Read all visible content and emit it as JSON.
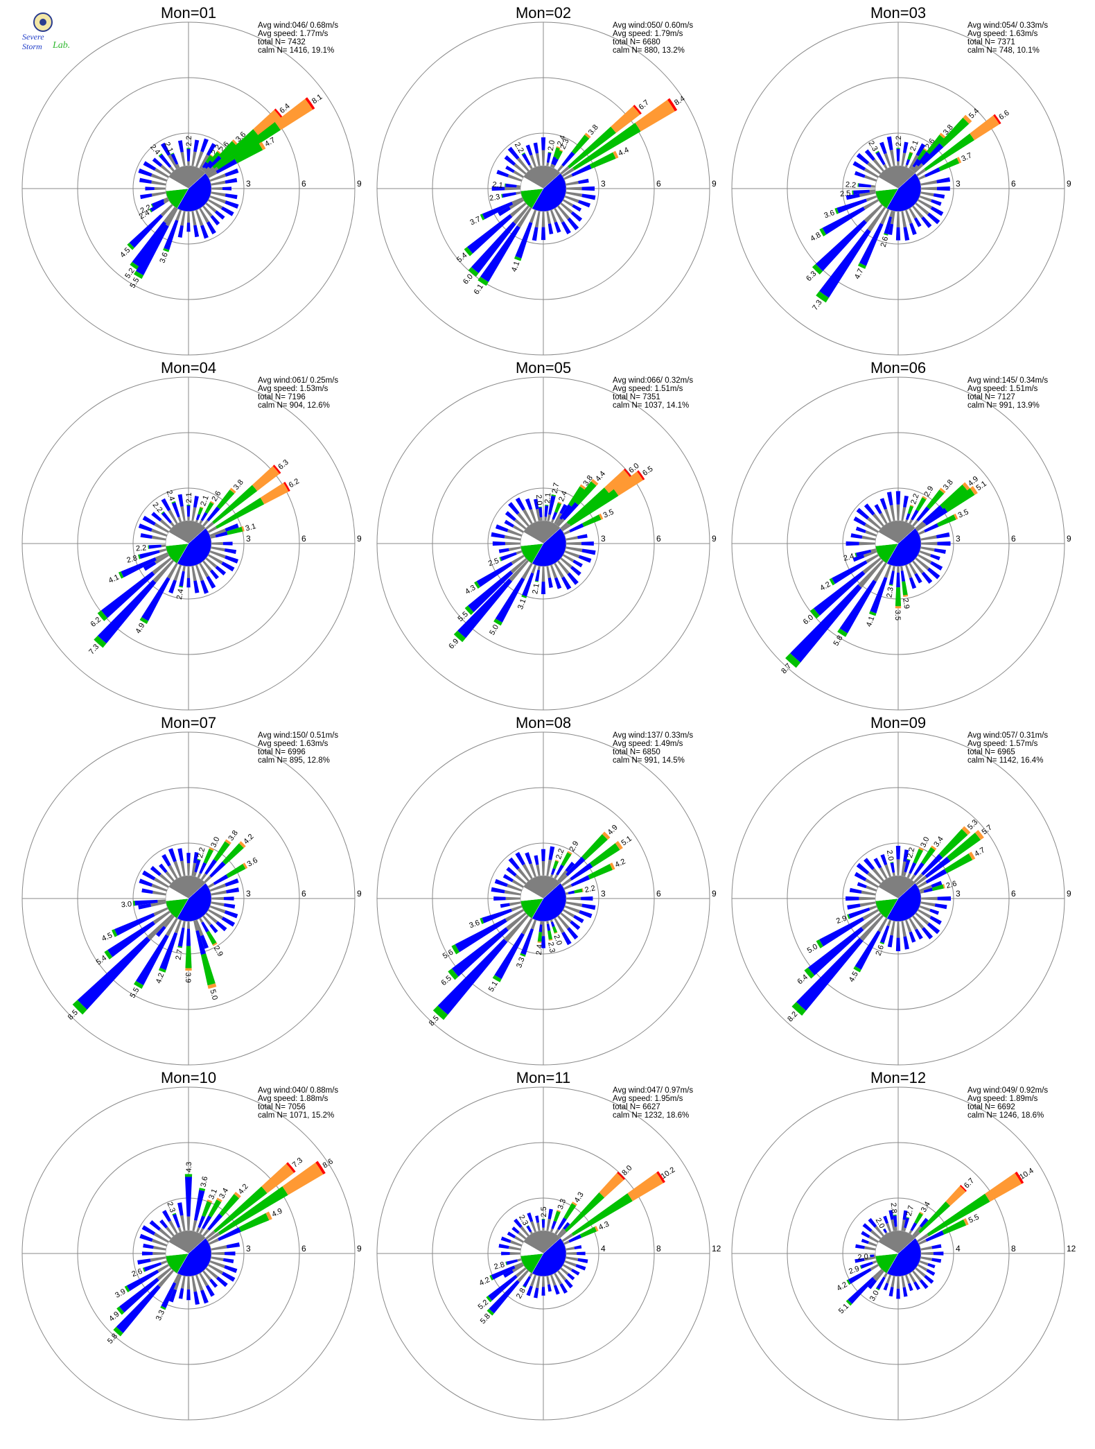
{
  "logo": {
    "line1": "Severe",
    "line2": "Storm",
    "line3": "Lab."
  },
  "labels": {
    "avg_wind": "Avg wind:",
    "avg_speed": "Avg speed:",
    "total": "total N=",
    "calm": "calm N="
  },
  "colors": {
    "gray": "#7f7f7f",
    "blue": "#0000ff",
    "green": "#00c000",
    "orange": "#ff9933",
    "red": "#ff0000",
    "calm_white": "#ffffff"
  },
  "chart_data": [
    {
      "type": "windrose",
      "title": "Mon=01",
      "stats": {
        "avg_wind": "046/ 0.68m/s",
        "avg_speed": "1.77m/s",
        "total_n": "7432",
        "calm": "1416,  19.1%"
      },
      "rmax": 9,
      "rings": [
        3,
        6,
        9
      ],
      "petals": [
        {
          "deg": 35,
          "value": 2.2
        },
        {
          "deg": 40,
          "value": 2.6
        },
        {
          "deg": 45,
          "value": 3.6
        },
        {
          "deg": 50,
          "value": 6.4
        },
        {
          "deg": 55,
          "value": 8.1
        },
        {
          "deg": 60,
          "value": 4.7
        },
        {
          "deg": 335,
          "value": 2.1
        },
        {
          "deg": 0,
          "value": 2.2
        },
        {
          "deg": 320,
          "value": 2.4
        },
        {
          "deg": 245,
          "value": 2.2
        },
        {
          "deg": 240,
          "value": 2.4
        },
        {
          "deg": 225,
          "value": 4.5
        },
        {
          "deg": 215,
          "value": 5.2
        },
        {
          "deg": 210,
          "value": 5.5
        },
        {
          "deg": 200,
          "value": 3.6
        }
      ],
      "slices": [
        0.3,
        0.45,
        0.15,
        0.1
      ]
    },
    {
      "type": "windrose",
      "title": "Mon=02",
      "stats": {
        "avg_wind": "050/ 0.60m/s",
        "avg_speed": "1.79m/s",
        "total_n": "6680",
        "calm": "880,  13.2%"
      },
      "rmax": 9,
      "rings": [
        3,
        6,
        9
      ],
      "petals": [
        {
          "deg": 10,
          "value": 2.0
        },
        {
          "deg": 20,
          "value": 2.4
        },
        {
          "deg": 25,
          "value": 2.3
        },
        {
          "deg": 40,
          "value": 3.8
        },
        {
          "deg": 50,
          "value": 6.7
        },
        {
          "deg": 57,
          "value": 8.4
        },
        {
          "deg": 65,
          "value": 4.4
        },
        {
          "deg": 330,
          "value": 2.2
        },
        {
          "deg": 275,
          "value": 2.1
        },
        {
          "deg": 260,
          "value": 2.3
        },
        {
          "deg": 245,
          "value": 3.7
        },
        {
          "deg": 230,
          "value": 5.4
        },
        {
          "deg": 220,
          "value": 6.0
        },
        {
          "deg": 213,
          "value": 6.1
        },
        {
          "deg": 200,
          "value": 4.1
        }
      ],
      "slices": [
        0.3,
        0.45,
        0.15,
        0.1
      ]
    },
    {
      "type": "windrose",
      "title": "Mon=03",
      "stats": {
        "avg_wind": "054/ 0.33m/s",
        "avg_speed": "1.63m/s",
        "total_n": "7371",
        "calm": "748,  10.1%"
      },
      "rmax": 9,
      "rings": [
        3,
        6,
        9
      ],
      "petals": [
        {
          "deg": 20,
          "value": 2.1
        },
        {
          "deg": 35,
          "value": 2.6
        },
        {
          "deg": 40,
          "value": 3.8
        },
        {
          "deg": 45,
          "value": 5.4
        },
        {
          "deg": 55,
          "value": 6.6
        },
        {
          "deg": 65,
          "value": 3.7
        },
        {
          "deg": 0,
          "value": 2.2
        },
        {
          "deg": 330,
          "value": 2.3
        },
        {
          "deg": 275,
          "value": 2.2
        },
        {
          "deg": 265,
          "value": 2.5
        },
        {
          "deg": 250,
          "value": 3.6
        },
        {
          "deg": 240,
          "value": 4.8
        },
        {
          "deg": 225,
          "value": 6.3
        },
        {
          "deg": 215,
          "value": 7.3
        },
        {
          "deg": 205,
          "value": 4.7
        },
        {
          "deg": 195,
          "value": 2.6
        }
      ],
      "slices": [
        0.3,
        0.45,
        0.15,
        0.1
      ]
    },
    {
      "type": "windrose",
      "title": "Mon=04",
      "stats": {
        "avg_wind": "061/ 0.25m/s",
        "avg_speed": "1.53m/s",
        "total_n": "7196",
        "calm": "904,  12.6%"
      },
      "rmax": 9,
      "rings": [
        3,
        6,
        9
      ],
      "petals": [
        {
          "deg": 0,
          "value": 2.1
        },
        {
          "deg": 20,
          "value": 2.1
        },
        {
          "deg": 30,
          "value": 2.6
        },
        {
          "deg": 40,
          "value": 3.8
        },
        {
          "deg": 50,
          "value": 6.3
        },
        {
          "deg": 60,
          "value": 6.2
        },
        {
          "deg": 75,
          "value": 3.1
        },
        {
          "deg": 340,
          "value": 2.4
        },
        {
          "deg": 320,
          "value": 2.2
        },
        {
          "deg": 265,
          "value": 2.2
        },
        {
          "deg": 255,
          "value": 2.8
        },
        {
          "deg": 245,
          "value": 4.1
        },
        {
          "deg": 230,
          "value": 6.2
        },
        {
          "deg": 222,
          "value": 7.3
        },
        {
          "deg": 210,
          "value": 4.9
        },
        {
          "deg": 190,
          "value": 2.4
        }
      ],
      "slices": [
        0.3,
        0.45,
        0.15,
        0.1
      ]
    },
    {
      "type": "windrose",
      "title": "Mon=05",
      "stats": {
        "avg_wind": "066/ 0.32m/s",
        "avg_speed": "1.51m/s",
        "total_n": "7351",
        "calm": "1037,  14.1%"
      },
      "rmax": 9,
      "rings": [
        3,
        6,
        9
      ],
      "petals": [
        {
          "deg": 355,
          "value": 2.0
        },
        {
          "deg": 5,
          "value": 2.1
        },
        {
          "deg": 12,
          "value": 2.7
        },
        {
          "deg": 22,
          "value": 2.4
        },
        {
          "deg": 35,
          "value": 3.8
        },
        {
          "deg": 40,
          "value": 4.4
        },
        {
          "deg": 50,
          "value": 6.0
        },
        {
          "deg": 55,
          "value": 6.5
        },
        {
          "deg": 65,
          "value": 3.5
        },
        {
          "deg": 250,
          "value": 2.5
        },
        {
          "deg": 238,
          "value": 4.3
        },
        {
          "deg": 228,
          "value": 5.5
        },
        {
          "deg": 222,
          "value": 6.9
        },
        {
          "deg": 210,
          "value": 5.0
        },
        {
          "deg": 200,
          "value": 3.1
        },
        {
          "deg": 190,
          "value": 2.1
        }
      ],
      "slices": [
        0.3,
        0.45,
        0.15,
        0.1
      ]
    },
    {
      "type": "windrose",
      "title": "Mon=06",
      "stats": {
        "avg_wind": "145/ 0.34m/s",
        "avg_speed": "1.51m/s",
        "total_n": "7127",
        "calm": "991,  13.9%"
      },
      "rmax": 9,
      "rings": [
        3,
        6,
        9
      ],
      "petals": [
        {
          "deg": 20,
          "value": 2.2
        },
        {
          "deg": 30,
          "value": 2.9
        },
        {
          "deg": 40,
          "value": 3.8
        },
        {
          "deg": 50,
          "value": 4.9
        },
        {
          "deg": 55,
          "value": 5.1
        },
        {
          "deg": 65,
          "value": 3.5
        },
        {
          "deg": 255,
          "value": 2.4
        },
        {
          "deg": 240,
          "value": 4.2
        },
        {
          "deg": 230,
          "value": 6.0
        },
        {
          "deg": 222,
          "value": 8.7
        },
        {
          "deg": 212,
          "value": 5.8
        },
        {
          "deg": 200,
          "value": 4.1
        },
        {
          "deg": 190,
          "value": 2.3
        },
        {
          "deg": 180,
          "value": 3.5
        },
        {
          "deg": 172,
          "value": 2.9
        }
      ],
      "slices": [
        0.3,
        0.45,
        0.15,
        0.1
      ]
    },
    {
      "type": "windrose",
      "title": "Mon=07",
      "stats": {
        "avg_wind": "150/ 0.51m/s",
        "avg_speed": "1.63m/s",
        "total_n": "6996",
        "calm": "895,  12.8%"
      },
      "rmax": 9,
      "rings": [
        3,
        6,
        9
      ],
      "petals": [
        {
          "deg": 15,
          "value": 2.2
        },
        {
          "deg": 25,
          "value": 3.0
        },
        {
          "deg": 35,
          "value": 3.8
        },
        {
          "deg": 45,
          "value": 4.2
        },
        {
          "deg": 60,
          "value": 3.6
        },
        {
          "deg": 265,
          "value": 3.0
        },
        {
          "deg": 245,
          "value": 4.5
        },
        {
          "deg": 235,
          "value": 5.4
        },
        {
          "deg": 225,
          "value": 8.5
        },
        {
          "deg": 210,
          "value": 5.5
        },
        {
          "deg": 200,
          "value": 4.2
        },
        {
          "deg": 190,
          "value": 2.7
        },
        {
          "deg": 180,
          "value": 3.9
        },
        {
          "deg": 165,
          "value": 5.0
        },
        {
          "deg": 150,
          "value": 2.9
        }
      ],
      "slices": [
        0.3,
        0.45,
        0.15,
        0.1
      ]
    },
    {
      "type": "windrose",
      "title": "Mon=08",
      "stats": {
        "avg_wind": "137/ 0.33m/s",
        "avg_speed": "1.49m/s",
        "total_n": "6850",
        "calm": "991,  14.5%"
      },
      "rmax": 9,
      "rings": [
        3,
        6,
        9
      ],
      "petals": [
        {
          "deg": 20,
          "value": 2.2
        },
        {
          "deg": 30,
          "value": 2.9
        },
        {
          "deg": 45,
          "value": 4.9
        },
        {
          "deg": 55,
          "value": 5.1
        },
        {
          "deg": 65,
          "value": 4.2
        },
        {
          "deg": 78,
          "value": 2.2
        },
        {
          "deg": 250,
          "value": 3.6
        },
        {
          "deg": 240,
          "value": 5.6
        },
        {
          "deg": 230,
          "value": 6.5
        },
        {
          "deg": 222,
          "value": 8.5
        },
        {
          "deg": 210,
          "value": 5.1
        },
        {
          "deg": 200,
          "value": 3.3
        },
        {
          "deg": 185,
          "value": 2.4
        },
        {
          "deg": 170,
          "value": 2.3
        },
        {
          "deg": 160,
          "value": 2.0
        }
      ],
      "slices": [
        0.3,
        0.45,
        0.15,
        0.1
      ]
    },
    {
      "type": "windrose",
      "title": "Mon=09",
      "stats": {
        "avg_wind": "057/ 0.31m/s",
        "avg_speed": "1.57m/s",
        "total_n": "6965",
        "calm": "1142,  16.4%"
      },
      "rmax": 9,
      "rings": [
        3,
        6,
        9
      ],
      "petals": [
        {
          "deg": 350,
          "value": 2.0
        },
        {
          "deg": 15,
          "value": 2.2
        },
        {
          "deg": 25,
          "value": 3.0
        },
        {
          "deg": 35,
          "value": 3.4
        },
        {
          "deg": 45,
          "value": 5.3
        },
        {
          "deg": 52,
          "value": 5.7
        },
        {
          "deg": 60,
          "value": 4.7
        },
        {
          "deg": 75,
          "value": 2.6
        },
        {
          "deg": 250,
          "value": 2.9
        },
        {
          "deg": 240,
          "value": 5.0
        },
        {
          "deg": 230,
          "value": 6.4
        },
        {
          "deg": 222,
          "value": 8.2
        },
        {
          "deg": 210,
          "value": 4.5
        },
        {
          "deg": 200,
          "value": 2.6
        }
      ],
      "slices": [
        0.3,
        0.45,
        0.15,
        0.1
      ]
    },
    {
      "type": "windrose",
      "title": "Mon=10",
      "stats": {
        "avg_wind": "040/ 0.88m/s",
        "avg_speed": "1.88m/s",
        "total_n": "7056",
        "calm": "1071,  15.2%"
      },
      "rmax": 9,
      "rings": [
        3,
        6,
        9
      ],
      "petals": [
        {
          "deg": 0,
          "value": 4.3
        },
        {
          "deg": 12,
          "value": 3.6
        },
        {
          "deg": 22,
          "value": 3.1
        },
        {
          "deg": 30,
          "value": 3.4
        },
        {
          "deg": 40,
          "value": 4.2
        },
        {
          "deg": 50,
          "value": 7.3
        },
        {
          "deg": 57,
          "value": 8.6
        },
        {
          "deg": 65,
          "value": 4.9
        },
        {
          "deg": 340,
          "value": 2.3
        },
        {
          "deg": 250,
          "value": 2.6
        },
        {
          "deg": 240,
          "value": 3.9
        },
        {
          "deg": 230,
          "value": 4.9
        },
        {
          "deg": 222,
          "value": 5.8
        },
        {
          "deg": 205,
          "value": 3.3
        }
      ],
      "slices": [
        0.3,
        0.45,
        0.15,
        0.1
      ]
    },
    {
      "type": "windrose",
      "title": "Mon=11",
      "stats": {
        "avg_wind": "047/ 0.97m/s",
        "avg_speed": "1.95m/s",
        "total_n": "6627",
        "calm": "1232,  18.6%"
      },
      "rmax": 12,
      "rings": [
        4,
        8,
        12
      ],
      "petals": [
        {
          "deg": 330,
          "value": 2.3
        },
        {
          "deg": 0,
          "value": 2.5
        },
        {
          "deg": 20,
          "value": 3.3
        },
        {
          "deg": 32,
          "value": 4.3
        },
        {
          "deg": 45,
          "value": 8.0
        },
        {
          "deg": 57,
          "value": 10.2
        },
        {
          "deg": 65,
          "value": 4.3
        },
        {
          "deg": 255,
          "value": 2.8
        },
        {
          "deg": 245,
          "value": 4.2
        },
        {
          "deg": 230,
          "value": 5.2
        },
        {
          "deg": 222,
          "value": 5.8
        },
        {
          "deg": 210,
          "value": 2.8
        }
      ],
      "slices": [
        0.3,
        0.45,
        0.15,
        0.1
      ]
    },
    {
      "type": "windrose",
      "title": "Mon=12",
      "stats": {
        "avg_wind": "049/ 0.92m/s",
        "avg_speed": "1.89m/s",
        "total_n": "6692",
        "calm": "1246,  18.6%"
      },
      "rmax": 12,
      "rings": [
        4,
        8,
        12
      ],
      "petals": [
        {
          "deg": 330,
          "value": 2.0
        },
        {
          "deg": 355,
          "value": 2.8
        },
        {
          "deg": 15,
          "value": 2.7
        },
        {
          "deg": 30,
          "value": 3.4
        },
        {
          "deg": 45,
          "value": 6.7
        },
        {
          "deg": 58,
          "value": 10.4
        },
        {
          "deg": 65,
          "value": 5.5
        },
        {
          "deg": 265,
          "value": 2.0
        },
        {
          "deg": 250,
          "value": 2.9
        },
        {
          "deg": 240,
          "value": 4.2
        },
        {
          "deg": 225,
          "value": 5.1
        },
        {
          "deg": 210,
          "value": 3.0
        }
      ],
      "slices": [
        0.3,
        0.45,
        0.15,
        0.1
      ]
    }
  ]
}
